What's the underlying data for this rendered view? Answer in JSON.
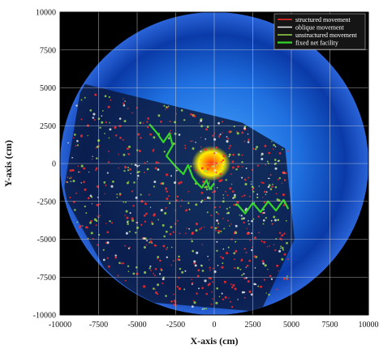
{
  "chart_data": {
    "type": "scatter",
    "title": "",
    "xlabel": "X-axis (cm)",
    "ylabel": "Y-axis (cm)",
    "xlim": [
      -10000,
      10000
    ],
    "ylim": [
      -10000,
      10000
    ],
    "x_ticks": [
      "-10000",
      "-7500",
      "-5000",
      "-2500",
      "0",
      "2500",
      "5000",
      "7500",
      "10000"
    ],
    "y_ticks": [
      "10000",
      "7500",
      "5000",
      "2500",
      "0",
      "-2500",
      "-5000",
      "-7500",
      "-10000"
    ],
    "grid": true,
    "legend_position": "top-right",
    "background": {
      "description_type": "circular sonar heatmap",
      "radius": 10000,
      "center": [
        0,
        0
      ]
    },
    "series": [
      {
        "name": "structured movement",
        "color": "#ff2a2a",
        "kind": "tracks"
      },
      {
        "name": "oblique movement",
        "color": "#e8e8e8",
        "kind": "tracks"
      },
      {
        "name": "unstructured movement",
        "color": "#9ad64a",
        "kind": "tracks"
      },
      {
        "name": "fixed net facility",
        "color": "#35d62a",
        "kind": "line",
        "points": [
          [
            -4200,
            2600
          ],
          [
            -3700,
            2000
          ],
          [
            -3300,
            1400
          ],
          [
            -2900,
            2000
          ],
          [
            -2700,
            1200
          ],
          [
            -3100,
            500
          ],
          [
            -2500,
            -200
          ],
          [
            -2000,
            -700
          ],
          [
            -1700,
            -100
          ],
          [
            -1400,
            -900
          ],
          [
            -1100,
            -1300
          ],
          [
            -800,
            -1600
          ],
          [
            -500,
            -1100
          ],
          [
            -300,
            -1700
          ],
          [
            0,
            -1300
          ]
        ]
      },
      {
        "name": "fixed net facility",
        "color": "#35d62a",
        "kind": "line",
        "points": [
          [
            1500,
            -2700
          ],
          [
            2000,
            -3300
          ],
          [
            2500,
            -2600
          ],
          [
            3000,
            -3200
          ],
          [
            3500,
            -2500
          ],
          [
            4000,
            -3100
          ],
          [
            4500,
            -2400
          ],
          [
            4800,
            -3000
          ]
        ]
      }
    ]
  }
}
